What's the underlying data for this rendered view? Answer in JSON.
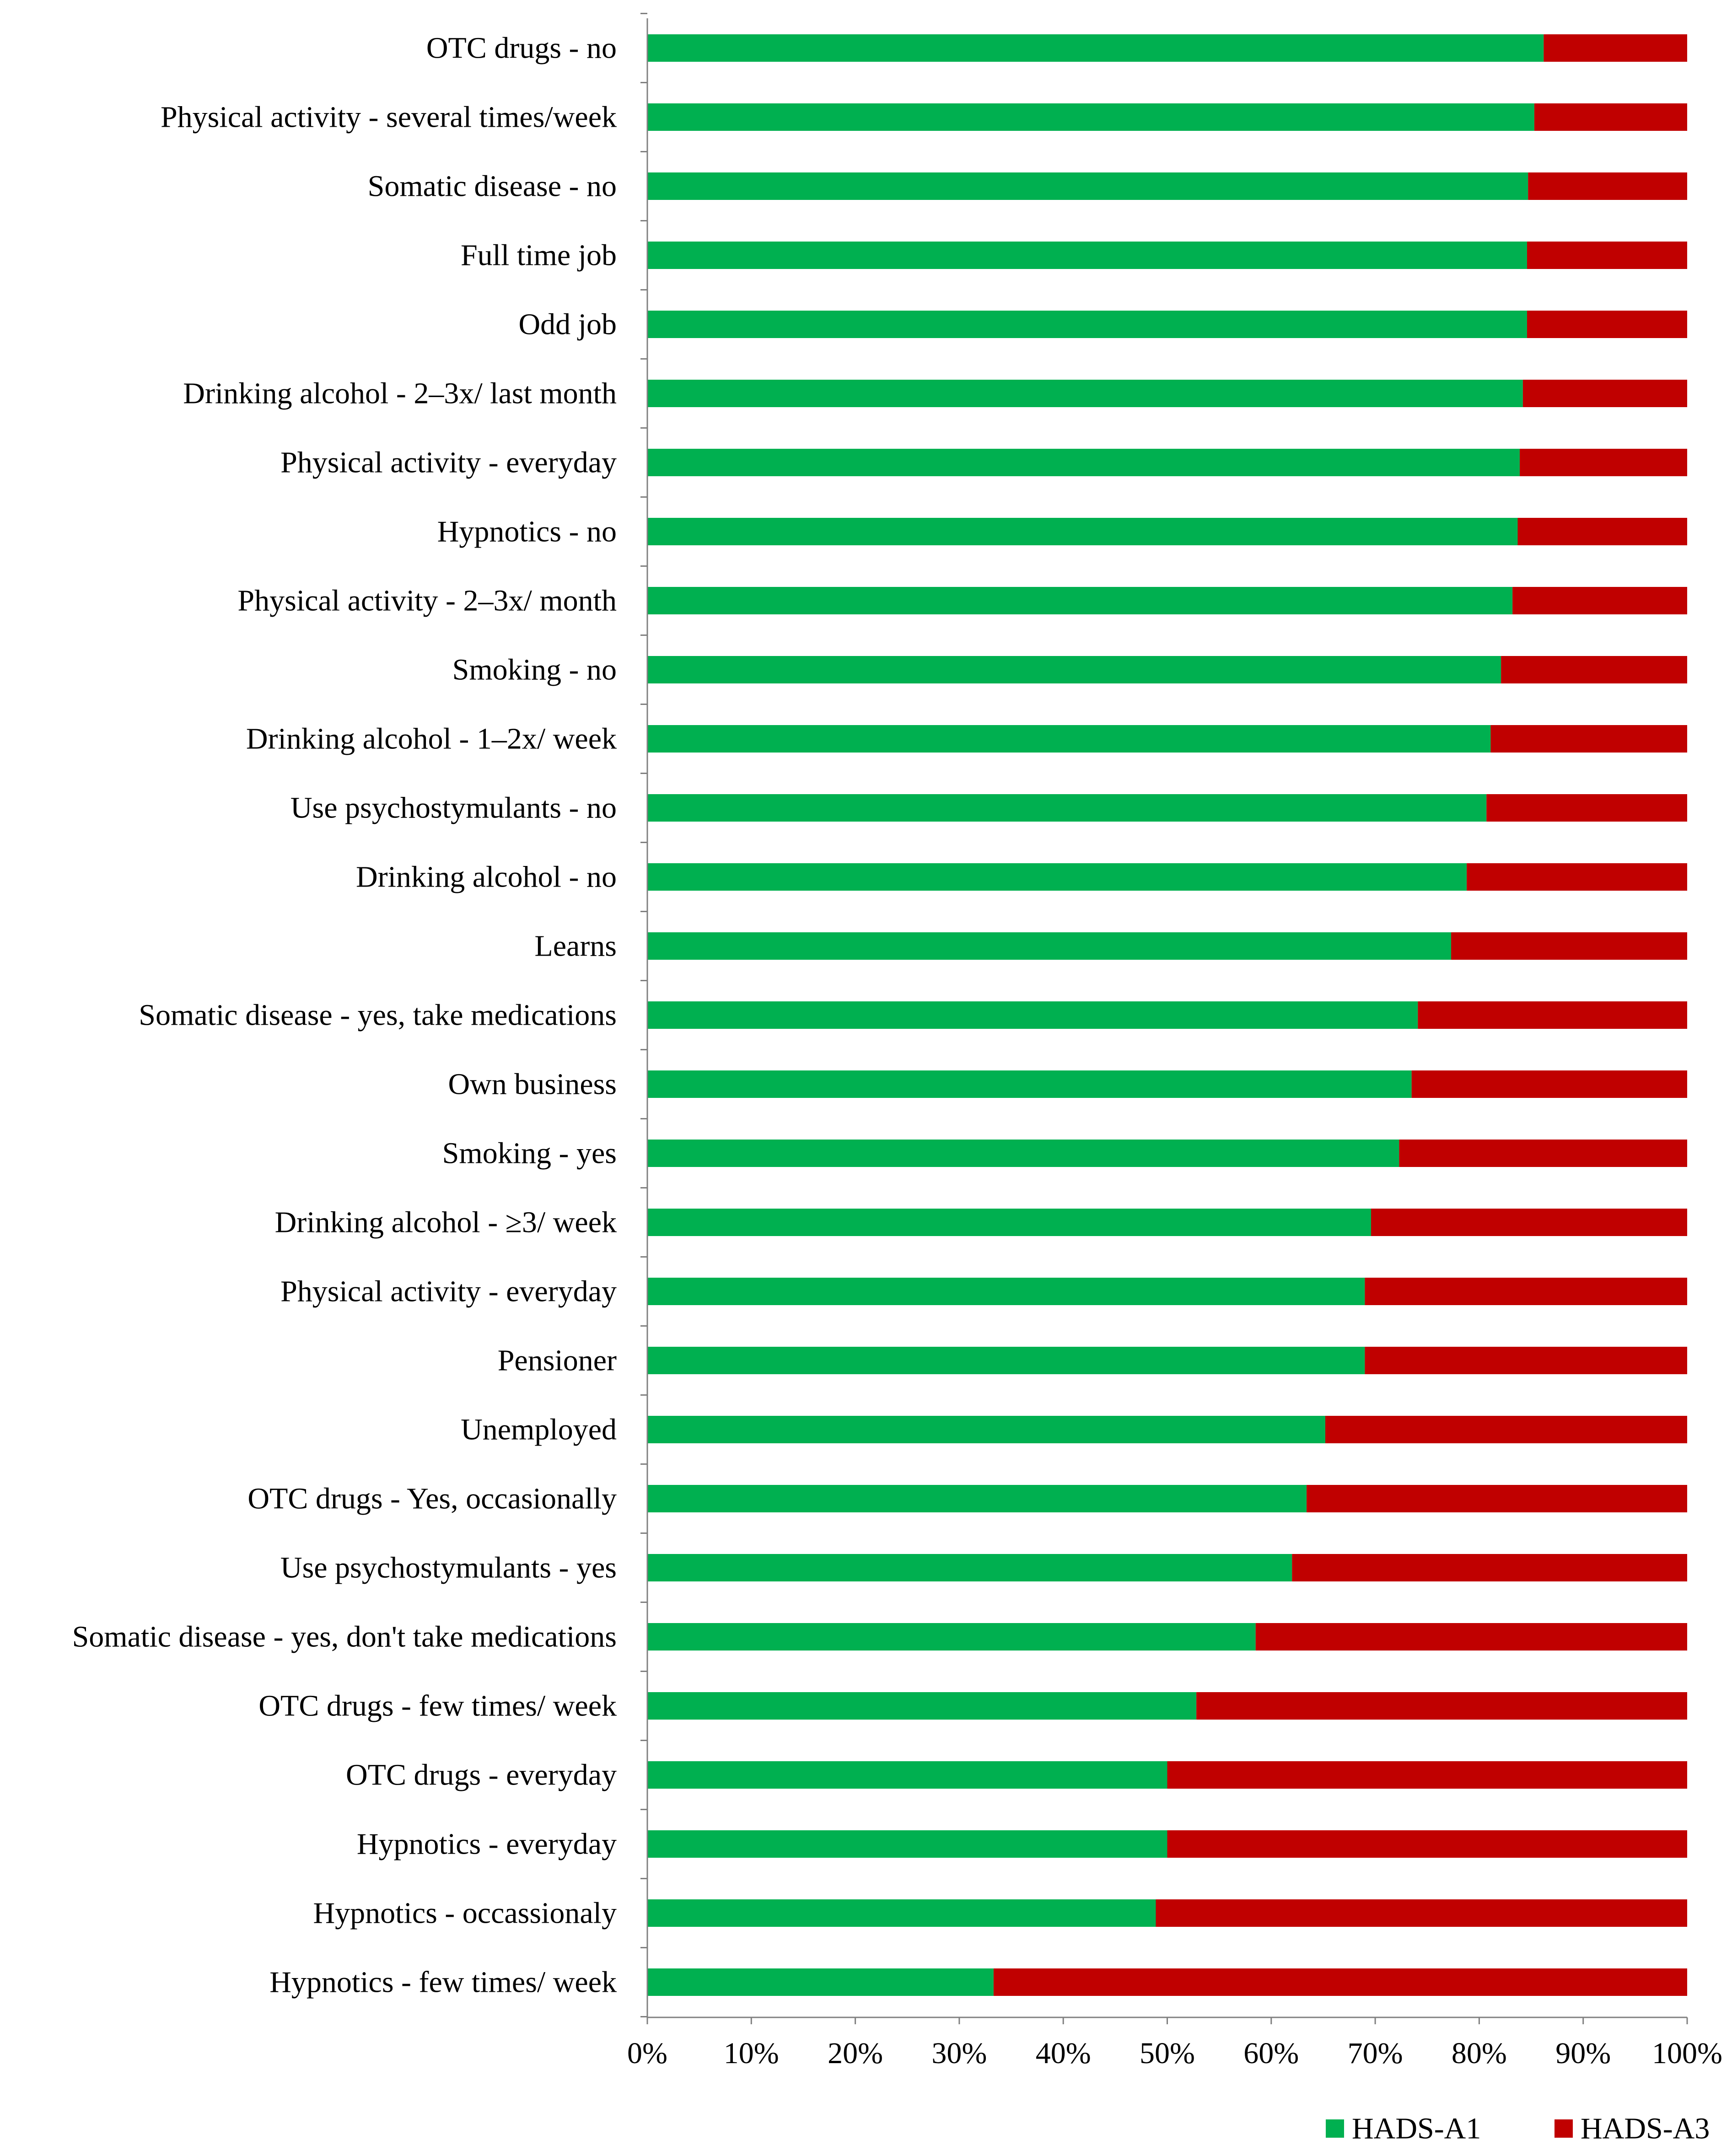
{
  "chart_data": {
    "type": "bar",
    "orientation": "horizontal",
    "stacked": "percent",
    "title": "",
    "xlabel": "",
    "ylabel": "",
    "xlim": [
      0,
      100
    ],
    "x_ticks": [
      "0%",
      "10%",
      "20%",
      "30%",
      "40%",
      "50%",
      "60%",
      "70%",
      "80%",
      "90%",
      "100%"
    ],
    "grid": false,
    "legend_position": "bottom-right",
    "categories": [
      "OTC drugs - no",
      "Physical activity - several times/week",
      "Somatic disease - no",
      "Full time job",
      "Odd job",
      "Drinking alcohol - 2–3x/ last month",
      "Physical activity - everyday",
      "Hypnotics - no",
      "Physical activity - 2–3x/ month",
      "Smoking - no",
      "Drinking alcohol - 1–2x/ week",
      "Use psychostymulants - no",
      "Drinking alcohol - no",
      "Learns",
      "Somatic disease - yes, take medications",
      "Own business",
      "Smoking - yes",
      "Drinking alcohol - ≥3/ week",
      "Physical activity - everyday",
      "Pensioner",
      "Unemployed",
      "OTC drugs - Yes, occasionally",
      "Use psychostymulants - yes",
      "Somatic disease - yes, don't take medications",
      "OTC drugs - few times/ week",
      "OTC drugs - everyday",
      "Hypnotics - everyday",
      "Hypnotics - occassionaly",
      "Hypnotics - few times/ week"
    ],
    "series": [
      {
        "name": "HADS-A1",
        "color": "#00b050",
        "values": [
          86.2,
          85.3,
          84.7,
          84.6,
          84.6,
          84.2,
          83.9,
          83.7,
          83.2,
          82.1,
          81.1,
          80.7,
          78.8,
          77.3,
          74.1,
          73.5,
          72.3,
          69.6,
          69.0,
          69.0,
          65.2,
          63.4,
          62.0,
          58.5,
          52.8,
          50.0,
          50.0,
          48.9,
          33.3
        ]
      },
      {
        "name": "HADS-A3",
        "color": "#c00000",
        "values": [
          13.8,
          14.7,
          15.3,
          15.4,
          15.4,
          15.8,
          16.1,
          16.3,
          16.8,
          17.9,
          18.9,
          19.3,
          21.2,
          22.7,
          25.9,
          26.5,
          27.7,
          30.4,
          31.0,
          31.0,
          34.8,
          36.6,
          38.0,
          41.5,
          47.2,
          50.0,
          50.0,
          51.1,
          66.7
        ]
      }
    ]
  }
}
